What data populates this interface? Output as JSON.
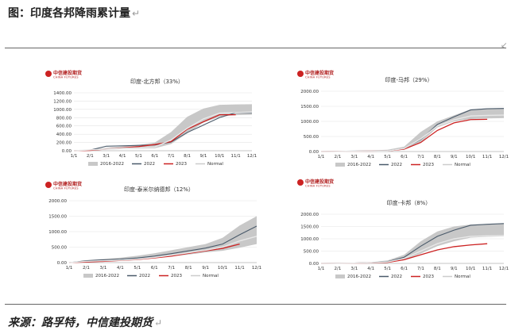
{
  "header": {
    "title": "图：印度各邦降雨累计量",
    "return_mark": "↵"
  },
  "source": {
    "text": "来源：路孚特，中信建投期货",
    "return_mark": "↵"
  },
  "logo": {
    "cn": "中信建投期货",
    "en": "CHINA FUTURES",
    "color": "#b22222"
  },
  "colors": {
    "band": "#c8c8c8",
    "s2022": "#4a5a6a",
    "s2023": "#cc2222",
    "normal": "#e8e8e8"
  },
  "chart_data": [
    {
      "type": "line",
      "title": "印度-北方邦（33%）",
      "categories": [
        "1/1",
        "2/1",
        "3/1",
        "4/1",
        "5/1",
        "6/1",
        "7/1",
        "8/1",
        "9/1",
        "10/1",
        "11/1",
        "12/1"
      ],
      "y_tick_labels": [
        "0.00",
        "200.00",
        "400.00",
        "600.00",
        "800.00",
        "1000.00",
        "1200.00",
        "1400.00"
      ],
      "ylim": [
        0,
        1400
      ],
      "legend": [
        "2016-2022",
        "2022",
        "2023",
        "Normal"
      ],
      "band": {
        "name": "2016-2022",
        "low": [
          0,
          10,
          25,
          40,
          50,
          60,
          160,
          420,
          680,
          820,
          860,
          870
        ],
        "high": [
          0,
          30,
          70,
          110,
          140,
          200,
          450,
          820,
          1020,
          1110,
          1120,
          1125
        ]
      },
      "series": [
        {
          "name": "2022",
          "values": [
            0,
            15,
            110,
            120,
            130,
            140,
            210,
            440,
            620,
            800,
            920,
            920
          ]
        },
        {
          "name": "2023",
          "values": [
            0,
            8,
            40,
            70,
            100,
            150,
            220,
            520,
            700,
            870,
            870,
            null
          ]
        },
        {
          "name": "Normal",
          "values": [
            0,
            20,
            40,
            60,
            70,
            90,
            260,
            540,
            770,
            910,
            925,
            935
          ]
        }
      ]
    },
    {
      "type": "line",
      "title": "印度-马邦（29%）",
      "categories": [
        "1/1",
        "2/1",
        "3/1",
        "4/1",
        "5/1",
        "6/1",
        "7/1",
        "8/1",
        "9/1",
        "10/1",
        "11/1",
        "12/1"
      ],
      "y_tick_labels": [
        "0.00",
        "500.00",
        "1000.00",
        "1500.00",
        "2000.00"
      ],
      "ylim": [
        0,
        2000
      ],
      "legend": [
        "2016-2022",
        "2022",
        "2023",
        "Normal"
      ],
      "band": {
        "name": "2016-2022",
        "low": [
          0,
          5,
          10,
          15,
          20,
          60,
          300,
          800,
          1000,
          1080,
          1100,
          1110
        ],
        "high": [
          0,
          15,
          25,
          40,
          60,
          160,
          650,
          1000,
          1200,
          1400,
          1430,
          1440
        ]
      },
      "series": [
        {
          "name": "2022",
          "values": [
            0,
            10,
            15,
            20,
            25,
            100,
            400,
            900,
            1150,
            1380,
            1420,
            1430
          ]
        },
        {
          "name": "2023",
          "values": [
            0,
            5,
            10,
            15,
            20,
            80,
            300,
            700,
            950,
            1060,
            1070,
            null
          ]
        },
        {
          "name": "Normal",
          "values": [
            0,
            5,
            10,
            15,
            20,
            100,
            420,
            850,
            1050,
            1180,
            1200,
            1210
          ]
        }
      ]
    },
    {
      "type": "line",
      "title": "印度-泰米尔纳德邦（12%）",
      "categories": [
        "1/1",
        "2/1",
        "3/1",
        "4/1",
        "5/1",
        "6/1",
        "7/1",
        "8/1",
        "9/1",
        "10/1",
        "11/1",
        "12/1"
      ],
      "y_tick_labels": [
        "0.00",
        "500.00",
        "1000.00",
        "1500.00",
        "2000.00"
      ],
      "ylim": [
        0,
        2000
      ],
      "legend": [
        "2016-2022",
        "2022",
        "2023",
        "Normal"
      ],
      "band": {
        "name": "2016-2022",
        "low": [
          0,
          10,
          30,
          50,
          80,
          140,
          200,
          260,
          330,
          380,
          480,
          600
        ],
        "high": [
          0,
          80,
          120,
          160,
          220,
          300,
          400,
          500,
          600,
          800,
          1200,
          1500
        ]
      },
      "series": [
        {
          "name": "2022",
          "values": [
            0,
            60,
            90,
            110,
            150,
            210,
            290,
            380,
            470,
            600,
            900,
            1180
          ]
        },
        {
          "name": "2023",
          "values": [
            0,
            20,
            40,
            70,
            100,
            150,
            210,
            300,
            380,
            460,
            600,
            null
          ]
        },
        {
          "name": "Normal",
          "values": [
            0,
            40,
            60,
            80,
            110,
            170,
            240,
            320,
            400,
            500,
            700,
            850
          ]
        }
      ]
    },
    {
      "type": "line",
      "title": "印度-卡邦（8%）",
      "categories": [
        "1/1",
        "2/1",
        "3/1",
        "4/1",
        "5/1",
        "6/1",
        "7/1",
        "8/1",
        "9/1",
        "10/1",
        "11/1",
        "12/1"
      ],
      "y_tick_labels": [
        "0.00",
        "500.00",
        "1000.00",
        "1500.00",
        "2000.00"
      ],
      "ylim": [
        0,
        2000
      ],
      "legend": [
        "2016-2022",
        "2022",
        "2023",
        "Normal"
      ],
      "band": {
        "name": "2016-2022",
        "low": [
          0,
          5,
          10,
          20,
          40,
          150,
          400,
          700,
          900,
          1050,
          1080,
          1100
        ],
        "high": [
          0,
          20,
          30,
          50,
          120,
          350,
          900,
          1300,
          1500,
          1580,
          1600,
          1620
        ]
      },
      "series": [
        {
          "name": "2022",
          "values": [
            0,
            10,
            15,
            30,
            70,
            250,
            700,
            1100,
            1350,
            1550,
            1590,
            1620
          ]
        },
        {
          "name": "2023",
          "values": [
            0,
            5,
            10,
            20,
            40,
            150,
            350,
            550,
            680,
            750,
            800,
            null
          ]
        },
        {
          "name": "Normal",
          "values": [
            0,
            5,
            10,
            25,
            60,
            200,
            500,
            800,
            1000,
            1100,
            1120,
            1130
          ]
        }
      ]
    }
  ]
}
